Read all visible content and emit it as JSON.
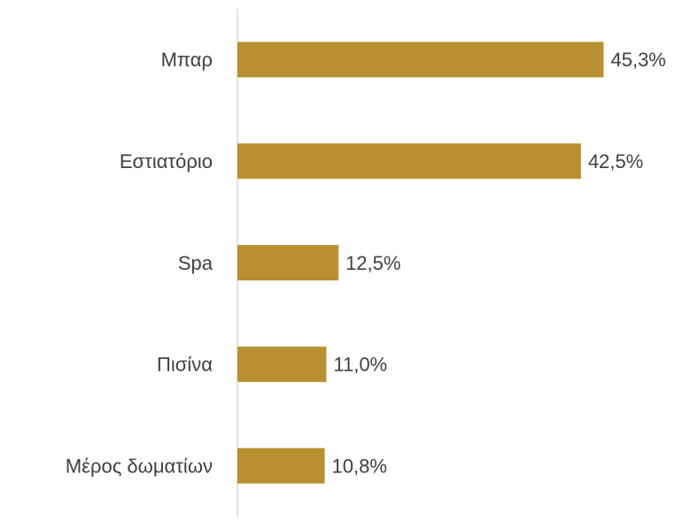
{
  "chart_data": {
    "type": "bar",
    "orientation": "horizontal",
    "categories": [
      "Μπαρ",
      "Εστιατόριο",
      "Spa",
      "Πισίνα",
      "Μέρος δωματίων"
    ],
    "values": [
      45.3,
      42.5,
      12.5,
      11.0,
      10.8
    ],
    "value_labels": [
      "45,3%",
      "42,5%",
      "12,5%",
      "11,0%",
      "10,8%"
    ],
    "color": "#b8902f",
    "xlim": [
      0,
      56
    ]
  }
}
